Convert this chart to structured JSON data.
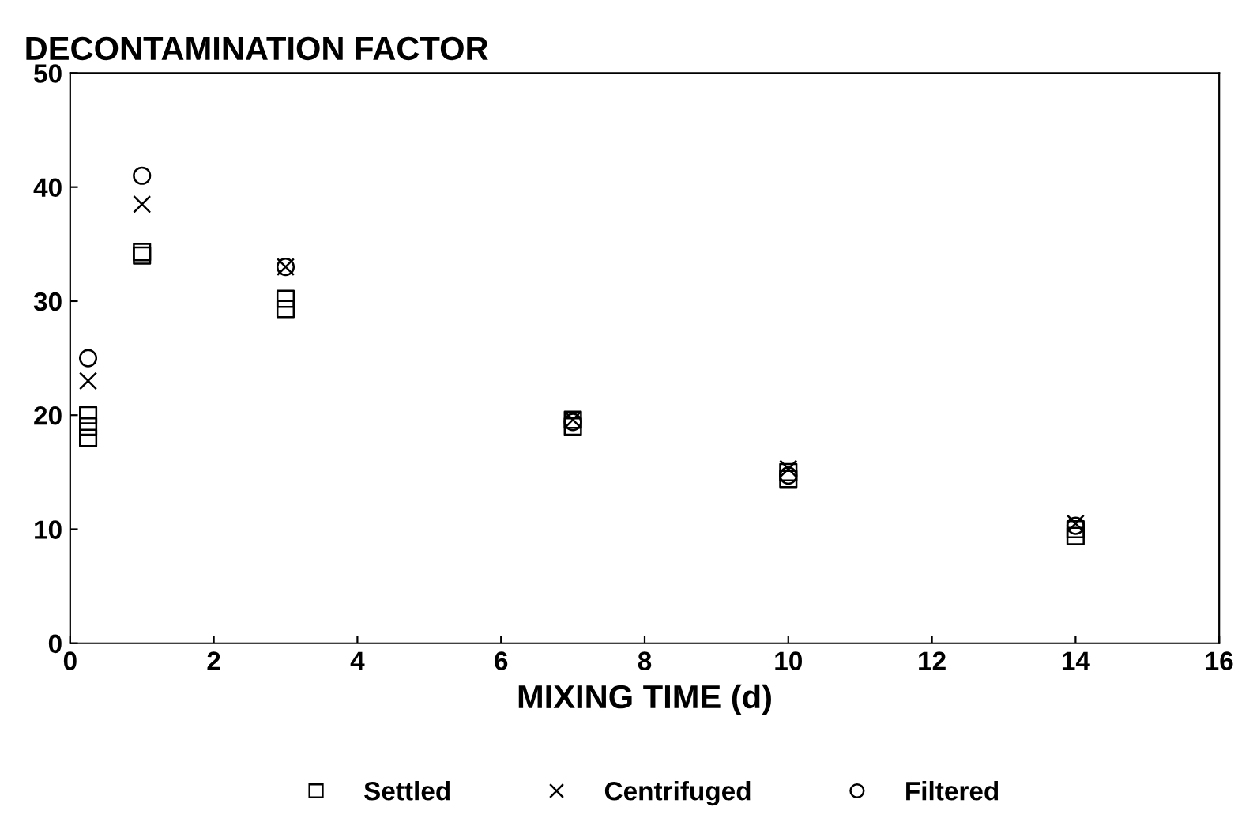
{
  "chart_data": {
    "type": "scatter",
    "title": "DECONTAMINATION FACTOR",
    "xlabel": "MIXING TIME (d)",
    "xlim": [
      0,
      16
    ],
    "xticks": [
      0,
      2,
      4,
      6,
      8,
      10,
      12,
      14,
      16
    ],
    "ylim": [
      0,
      50
    ],
    "yticks": [
      0,
      10,
      20,
      30,
      40,
      50
    ],
    "grid": false,
    "legend": "bottom",
    "series": [
      {
        "name": "Settled",
        "color": "#000000",
        "marker": "square",
        "x": [
          0.25,
          0.25,
          0.25,
          1,
          1,
          3,
          3,
          7,
          7,
          10,
          10,
          14,
          14
        ],
        "values": [
          18,
          19,
          20,
          34,
          34.3,
          29.3,
          30.2,
          19,
          19.6,
          14.4,
          15,
          9.4,
          10
        ]
      },
      {
        "name": "Centrifuged",
        "color": "#000000",
        "marker": "cross",
        "x": [
          0.25,
          1,
          3,
          7,
          10,
          14
        ],
        "values": [
          23,
          38.5,
          33,
          19.6,
          15.3,
          10.5
        ]
      },
      {
        "name": "Filtered",
        "color": "#000000",
        "marker": "circle",
        "x": [
          0.25,
          1,
          3,
          7,
          10,
          14
        ],
        "values": [
          25,
          41,
          33,
          19.4,
          14.7,
          10.3
        ]
      }
    ]
  }
}
